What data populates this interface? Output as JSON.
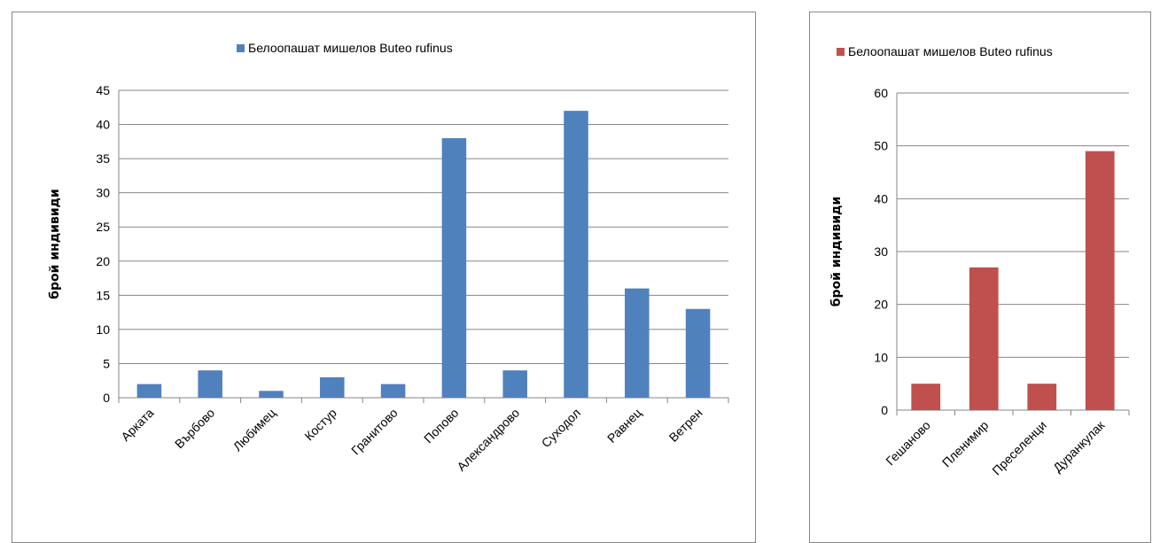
{
  "chart_data": [
    {
      "type": "bar",
      "categories": [
        "Арката",
        "Върбово",
        "Любимец",
        "Костур",
        "Гранитово",
        "Попово",
        "Александрово",
        "Суходол",
        "Равнец",
        "Ветрен"
      ],
      "series": [
        {
          "name": "Белоопашат мишелов Buteo rufinus",
          "color": "#4F81BD",
          "values": [
            2,
            4,
            1,
            3,
            2,
            38,
            4,
            42,
            16,
            13
          ]
        }
      ],
      "ylabel": "брой индивиди",
      "xlabel": "",
      "ylim": [
        0,
        45
      ],
      "ytick_step": 5,
      "yticks": [
        "0",
        "5",
        "10",
        "15",
        "20",
        "25",
        "30",
        "35",
        "40",
        "45"
      ],
      "grid": true,
      "legend": "top"
    },
    {
      "type": "bar",
      "categories": [
        "Гешаново",
        "Пленимир",
        "Преселенци",
        "Дуранкулак"
      ],
      "series": [
        {
          "name": "Белоопашат мишелов Buteo rufinus",
          "color": "#C0504D",
          "values": [
            5,
            27,
            5,
            49
          ]
        }
      ],
      "ylabel": "брой индивиди",
      "xlabel": "",
      "ylim": [
        0,
        60
      ],
      "ytick_step": 10,
      "yticks": [
        "0",
        "10",
        "20",
        "30",
        "40",
        "50",
        "60"
      ],
      "grid": true,
      "legend": "top"
    }
  ]
}
